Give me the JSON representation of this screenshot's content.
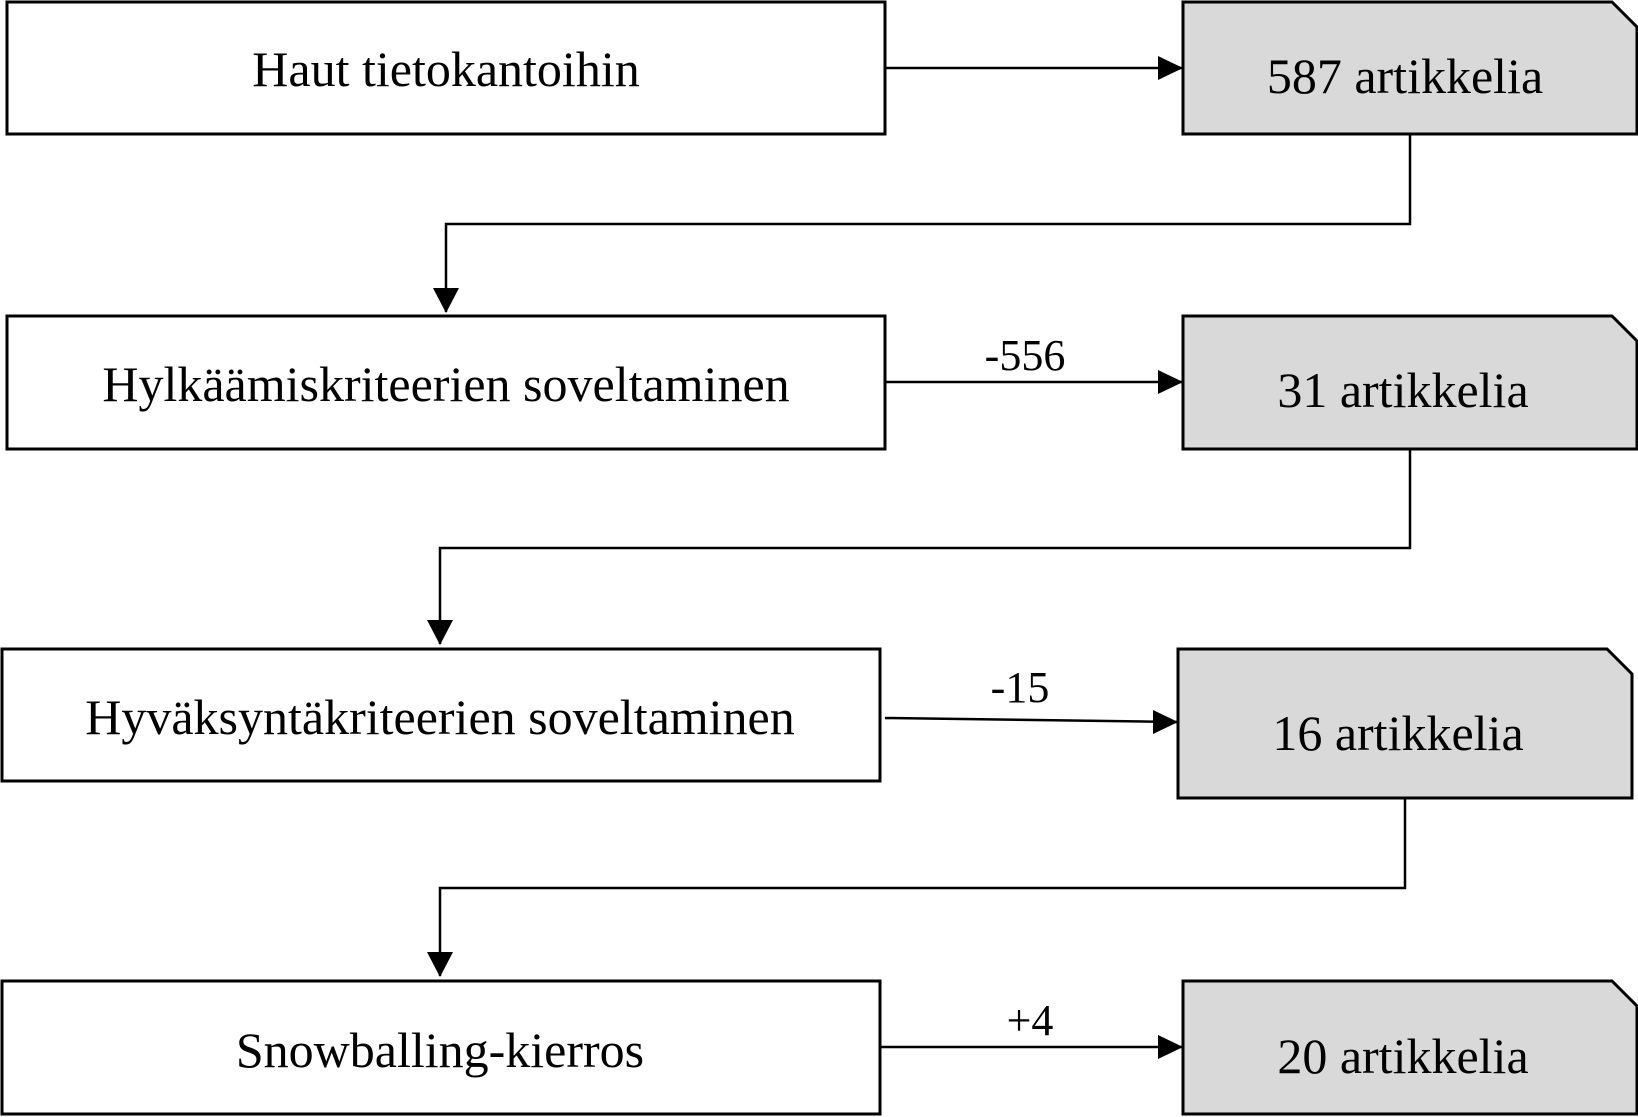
{
  "steps": [
    {
      "label": "Haut tietokantoihin",
      "delta": "",
      "result": "587 artikkelia"
    },
    {
      "label": "Hylkäämiskriteerien soveltaminen",
      "delta": "-556",
      "result": "31 artikkelia"
    },
    {
      "label": "Hyväksyntäkriteerien soveltaminen",
      "delta": "-15",
      "result": "16 artikkelia"
    },
    {
      "label": "Snowballing-kierros",
      "delta": "+4",
      "result": "20 artikkelia"
    }
  ],
  "colors": {
    "result_fill": "#d9d9d9",
    "step_fill": "#ffffff",
    "stroke": "#000000"
  }
}
